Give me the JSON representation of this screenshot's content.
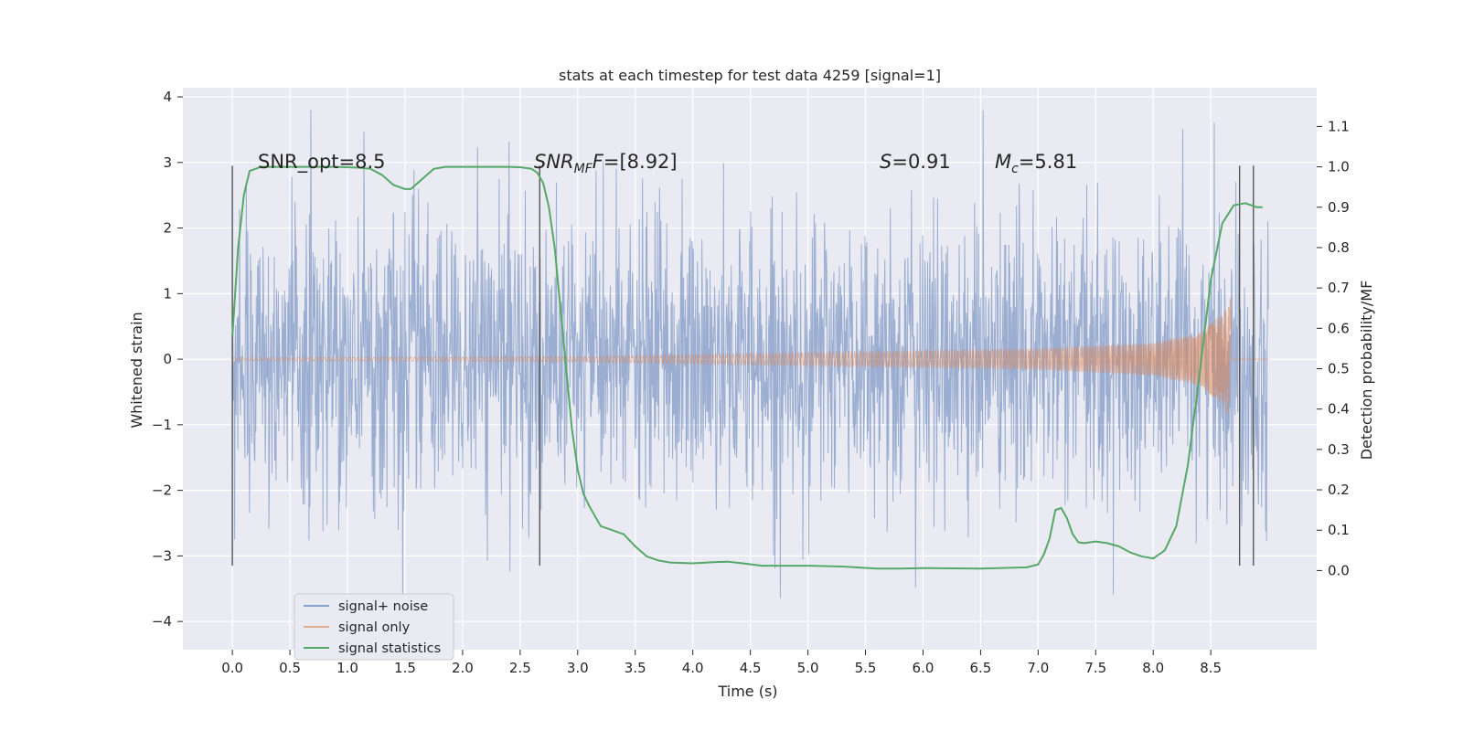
{
  "chart_data": {
    "type": "line",
    "title": "stats at each timestep for test data 4259 [signal=1]",
    "xlabel": "Time (s)",
    "ylabel": "Whitened strain",
    "y2label": "Detection probability/MF",
    "xlim": [
      -0.43,
      9.42
    ],
    "ylim": [
      -4.43,
      4.14
    ],
    "y2lim": [
      -0.196,
      1.196
    ],
    "x_ticks": [
      0.0,
      0.5,
      1.0,
      1.5,
      2.0,
      2.5,
      3.0,
      3.5,
      4.0,
      4.5,
      5.0,
      5.5,
      6.0,
      6.5,
      7.0,
      7.5,
      8.0,
      8.5
    ],
    "x_tick_labels": [
      "0.0",
      "0.5",
      "1.0",
      "1.5",
      "2.0",
      "2.5",
      "3.0",
      "3.5",
      "4.0",
      "4.5",
      "5.0",
      "5.5",
      "6.0",
      "6.5",
      "7.0",
      "7.5",
      "8.0",
      "8.5"
    ],
    "y_ticks": [
      4,
      3,
      2,
      1,
      0,
      -1,
      -2,
      -3,
      -4
    ],
    "y_tick_labels": [
      "4",
      "3",
      "2",
      "1",
      "0",
      "−1",
      "−2",
      "−3",
      "−4"
    ],
    "y2_ticks": [
      1.1,
      1.0,
      0.9,
      0.8,
      0.7,
      0.6,
      0.5,
      0.4,
      0.3,
      0.2,
      0.1,
      0.0
    ],
    "y2_tick_labels": [
      "1.1",
      "1.0",
      "0.9",
      "0.8",
      "0.7",
      "0.6",
      "0.5",
      "0.4",
      "0.3",
      "0.2",
      "0.1",
      "0.0"
    ],
    "grid": true,
    "legend_position": "lower-left",
    "series": [
      {
        "name": "signal+ noise",
        "color": "#4c72b0",
        "description_range": [
          0.0,
          9.0
        ],
        "envelope": {
          "typical_abs": 2.0,
          "spikes_max": 3.8,
          "spikes_min": -4.0
        }
      },
      {
        "name": "signal only",
        "color": "#dd8452",
        "chirp": {
          "t_start": 0.0,
          "t_merge": 8.67,
          "t_end": 9.0,
          "amplitude_points": [
            [
              0.0,
              0.02
            ],
            [
              3.0,
              0.04
            ],
            [
              5.0,
              0.1
            ],
            [
              7.0,
              0.16
            ],
            [
              8.0,
              0.25
            ],
            [
              8.4,
              0.4
            ],
            [
              8.6,
              0.7
            ],
            [
              8.67,
              0.92
            ]
          ]
        }
      },
      {
        "name": "signal statistics",
        "color": "#55a868",
        "axis": "right",
        "x": [
          0.0,
          0.05,
          0.1,
          0.15,
          0.25,
          0.35,
          0.6,
          0.9,
          1.1,
          1.2,
          1.3,
          1.4,
          1.5,
          1.55,
          1.65,
          1.75,
          1.85,
          2.0,
          2.2,
          2.4,
          2.5,
          2.6,
          2.65,
          2.7,
          2.75,
          2.8,
          2.85,
          2.9,
          2.95,
          3.0,
          3.05,
          3.1,
          3.2,
          3.3,
          3.4,
          3.5,
          3.6,
          3.7,
          3.8,
          4.0,
          4.2,
          4.3,
          4.4,
          4.6,
          5.0,
          5.3,
          5.6,
          5.8,
          6.0,
          6.5,
          6.9,
          7.0,
          7.05,
          7.1,
          7.15,
          7.2,
          7.25,
          7.3,
          7.35,
          7.4,
          7.5,
          7.6,
          7.7,
          7.8,
          7.9,
          8.0,
          8.1,
          8.2,
          8.3,
          8.4,
          8.5,
          8.6,
          8.7,
          8.8,
          8.85,
          8.9,
          8.95
        ],
        "values": [
          0.58,
          0.8,
          0.93,
          0.99,
          1.0,
          1.0,
          1.0,
          1.0,
          0.998,
          0.995,
          0.98,
          0.955,
          0.945,
          0.945,
          0.97,
          0.995,
          1.0,
          1.0,
          1.0,
          1.0,
          0.999,
          0.995,
          0.985,
          0.96,
          0.9,
          0.8,
          0.65,
          0.5,
          0.35,
          0.25,
          0.19,
          0.16,
          0.11,
          0.1,
          0.09,
          0.06,
          0.035,
          0.025,
          0.02,
          0.018,
          0.021,
          0.022,
          0.019,
          0.012,
          0.012,
          0.01,
          0.005,
          0.005,
          0.006,
          0.005,
          0.008,
          0.015,
          0.04,
          0.08,
          0.15,
          0.155,
          0.13,
          0.09,
          0.07,
          0.068,
          0.072,
          0.068,
          0.06,
          0.045,
          0.035,
          0.03,
          0.05,
          0.11,
          0.26,
          0.48,
          0.72,
          0.86,
          0.905,
          0.91,
          0.905,
          0.9,
          0.9
        ]
      }
    ],
    "annotations": [
      {
        "text": "SNR_opt=8.5",
        "x": 0.2,
        "y": 3.0
      },
      {
        "text_main": "SNR",
        "text_sub": "MF",
        "text_rest": "=[8.92]",
        "x": 2.6,
        "y": 3.0
      },
      {
        "text_main": "S",
        "text_rest": "=0.91",
        "x": 5.6,
        "y": 3.0
      },
      {
        "text_main": "M",
        "text_sub": "c",
        "text_rest": "=5.81",
        "x": 6.6,
        "y": 3.0
      }
    ],
    "vertical_lines": [
      {
        "x": 0.0,
        "ymin": -3.15,
        "ymax": 2.95
      },
      {
        "x": 2.67,
        "ymin": -3.15,
        "ymax": 2.95
      },
      {
        "x": 8.75,
        "ymin": -3.15,
        "ymax": 2.95
      },
      {
        "x": 8.87,
        "ymin": -3.15,
        "ymax": 2.95
      }
    ]
  }
}
